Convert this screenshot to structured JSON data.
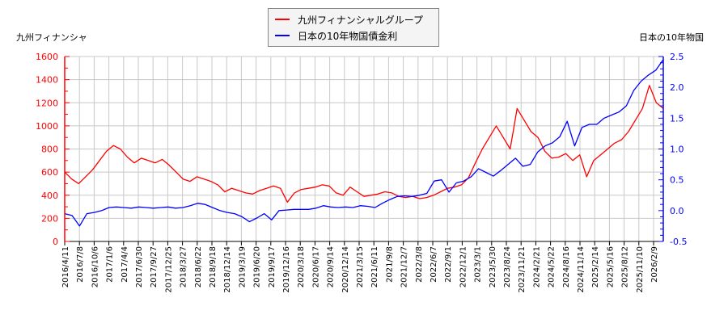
{
  "legend": {
    "items": [
      {
        "label": "九州フィナンシャルグループ",
        "color": "#ff0000"
      },
      {
        "label": "日本の10年物国債金利",
        "color": "#0000ff"
      }
    ]
  },
  "axes": {
    "left_title": "九州フィナンシャ",
    "right_title": "日本の10年物国"
  },
  "chart_data": {
    "type": "line",
    "title": "",
    "xlabel": "",
    "ylabel_left": "九州フィナンシャ",
    "ylabel_right": "日本の10年物国",
    "ylim_left": [
      0,
      1600
    ],
    "ylim_right": [
      -0.5,
      2.5
    ],
    "yticks_left": [
      0,
      200,
      400,
      600,
      800,
      1000,
      1200,
      1400,
      1600
    ],
    "yticks_right": [
      -0.5,
      0.0,
      0.5,
      1.0,
      1.5,
      2.0,
      2.5
    ],
    "grid": true,
    "legend_position": "top-center",
    "x_tick_labels": [
      "2016/4/11",
      "2016/7/8",
      "2016/10/6",
      "2017/1/6",
      "2017/4/4",
      "2017/6/30",
      "2017/9/27",
      "2017/12/25",
      "2018/3/27",
      "2018/6/22",
      "2018/9/18",
      "2018/12/14",
      "2019/3/19",
      "2019/6/20",
      "2019/9/17",
      "2019/12/16",
      "2020/3/18",
      "2020/6/17",
      "2020/9/14",
      "2020/12/14",
      "2021/3/15",
      "2021/6/11",
      "2021/9/8",
      "2021/12/7",
      "2022/3/8",
      "2022/6/7",
      "2022/9/1",
      "2022/12/1",
      "2023/3/1",
      "2023/5/30",
      "2023/8/24",
      "2023/11/21",
      "2024/2/21",
      "2024/5/22",
      "2024/8/16",
      "2024/11/14",
      "2025/2/14",
      "2025/5/16",
      "2025/8/12",
      "2025/11/10",
      "2026/2/9"
    ],
    "series": [
      {
        "name": "九州フィナンシャルグループ",
        "axis": "left",
        "color": "#ff0000",
        "values": [
          600,
          540,
          500,
          560,
          620,
          700,
          780,
          830,
          800,
          730,
          680,
          720,
          700,
          680,
          710,
          660,
          600,
          540,
          520,
          560,
          540,
          520,
          490,
          430,
          460,
          440,
          420,
          410,
          440,
          460,
          480,
          460,
          340,
          420,
          450,
          460,
          470,
          490,
          480,
          420,
          400,
          470,
          430,
          390,
          400,
          410,
          430,
          420,
          390,
          380,
          390,
          370,
          380,
          400,
          430,
          460,
          470,
          490,
          550,
          680,
          800,
          900,
          1000,
          900,
          800,
          1150,
          1050,
          950,
          900,
          780,
          720,
          730,
          760,
          700,
          750,
          560,
          700,
          750,
          800,
          850,
          880,
          950,
          1050,
          1150,
          1350,
          1200,
          1150
        ]
      },
      {
        "name": "日本の10年物国債金利",
        "axis": "right",
        "color": "#0000ff",
        "values": [
          -0.05,
          -0.08,
          -0.25,
          -0.05,
          -0.03,
          0.0,
          0.05,
          0.06,
          0.05,
          0.04,
          0.06,
          0.05,
          0.04,
          0.05,
          0.06,
          0.04,
          0.05,
          0.08,
          0.12,
          0.1,
          0.05,
          0.0,
          -0.03,
          -0.05,
          -0.1,
          -0.18,
          -0.12,
          -0.05,
          -0.15,
          0.0,
          0.01,
          0.02,
          0.02,
          0.02,
          0.04,
          0.08,
          0.06,
          0.05,
          0.06,
          0.05,
          0.08,
          0.07,
          0.05,
          0.12,
          0.18,
          0.23,
          0.24,
          0.23,
          0.25,
          0.28,
          0.48,
          0.5,
          0.3,
          0.45,
          0.48,
          0.55,
          0.68,
          0.62,
          0.56,
          0.65,
          0.75,
          0.85,
          0.72,
          0.75,
          0.95,
          1.05,
          1.1,
          1.2,
          1.45,
          1.05,
          1.35,
          1.4,
          1.4,
          1.5,
          1.55,
          1.6,
          1.7,
          1.95,
          2.1,
          2.2,
          2.28,
          2.45
        ]
      }
    ]
  }
}
